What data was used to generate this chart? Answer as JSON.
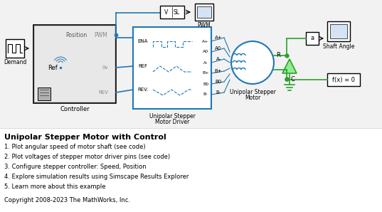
{
  "title": "Unipolar Stepper Motor with Control",
  "bullet_points": [
    "1. Plot angular speed of motor shaft (see code)",
    "2. Plot voltages of stepper motor driver pins (see code)",
    "3. Configure stepper controller: Speed, Position",
    "4. Explore simulation results using Simscape Results Explorer",
    "5. Learn more about this example"
  ],
  "copyright": "Copyright 2008-2023 The MathWorks, Inc.",
  "blue": "#1F77B4",
  "green": "#2ca02c",
  "black": "#000000",
  "dark_gray": "#555555",
  "mid_gray": "#888888",
  "light_gray": "#e0e0e0",
  "ctrl_bg": "#dcdcdc",
  "white": "#ffffff",
  "diagram_bg": "#f2f2f2"
}
